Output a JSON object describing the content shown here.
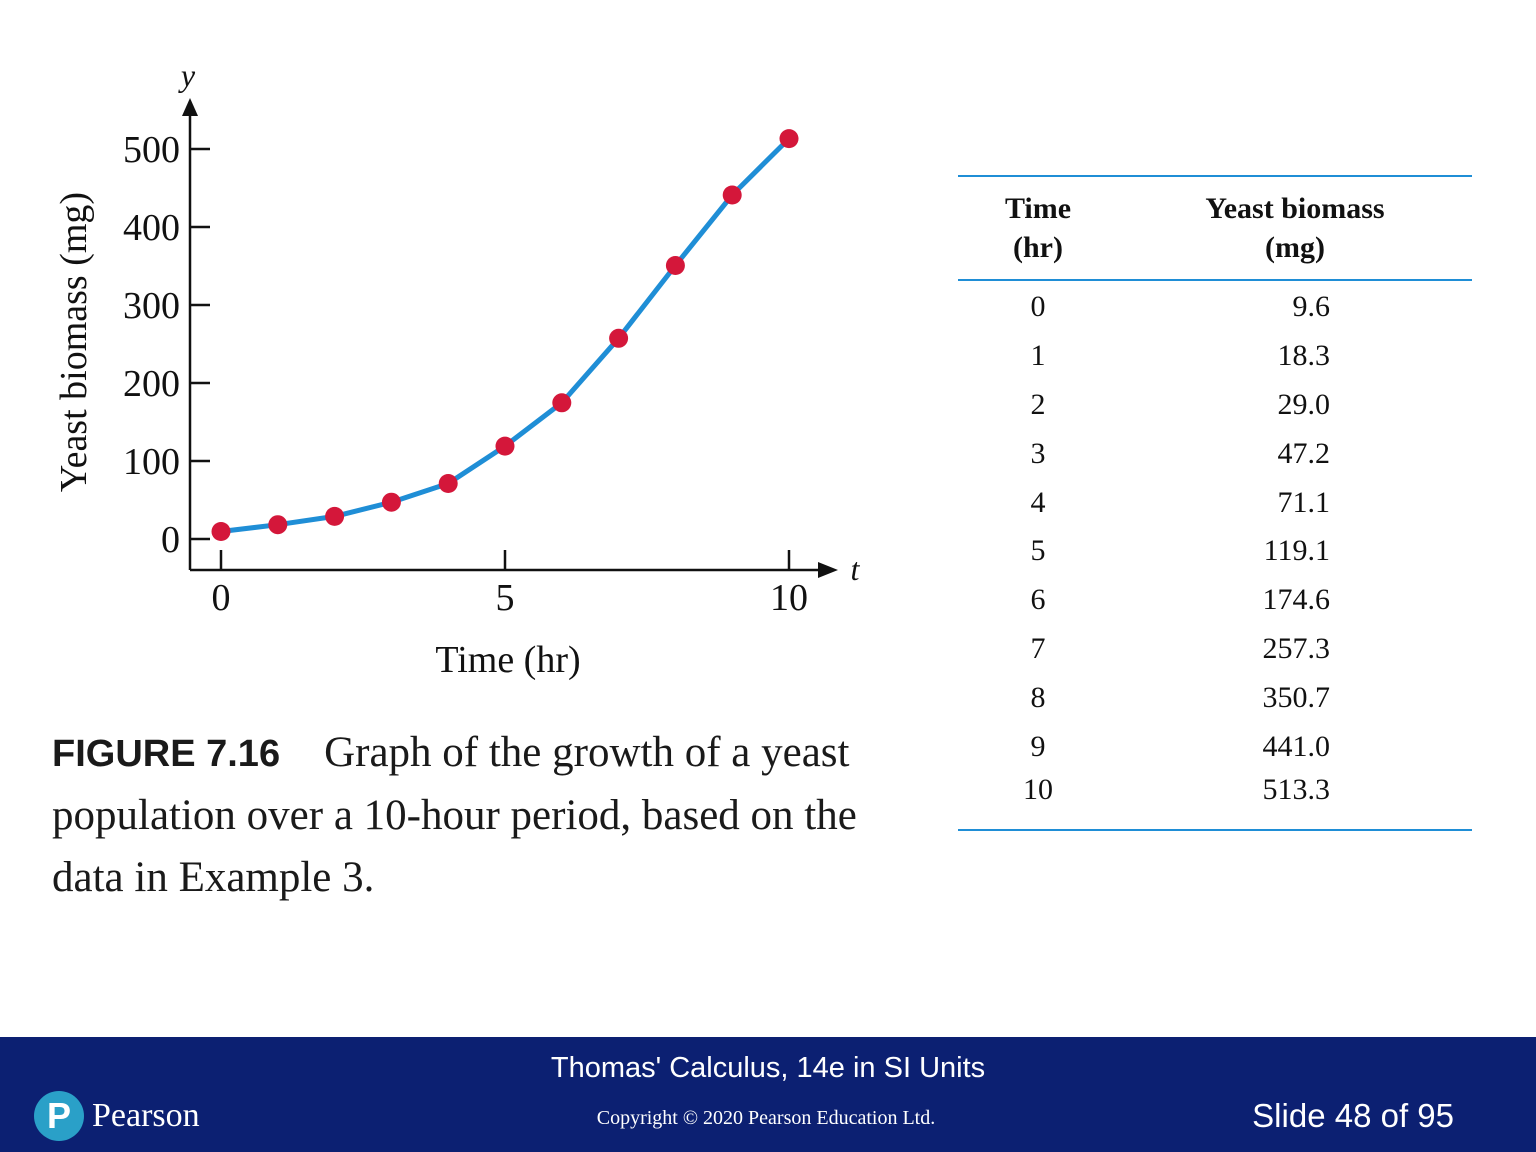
{
  "chart_data": {
    "type": "line",
    "x_axis_symbol": "t",
    "y_axis_symbol": "y",
    "xlabel": "Time (hr)",
    "ylabel": "Yeast biomass (mg)",
    "xlim": [
      0,
      10
    ],
    "ylim": [
      0,
      500
    ],
    "x_ticks": [
      0,
      5,
      10
    ],
    "y_ticks": [
      0,
      100,
      200,
      300,
      400,
      500
    ],
    "x": [
      0,
      1,
      2,
      3,
      4,
      5,
      6,
      7,
      8,
      9,
      10
    ],
    "y": [
      9.6,
      18.3,
      29.0,
      47.2,
      71.1,
      119.1,
      174.6,
      257.3,
      350.7,
      441.0,
      513.3
    ],
    "line_color": "#1f8ed6",
    "marker_color": "#d4173a",
    "grid": false
  },
  "caption": {
    "label": "FIGURE 7.16",
    "text": "Graph of the growth of a yeast population over a 10-hour period, based on the data in Example 3."
  },
  "table": {
    "header_time": [
      "Time",
      "(hr)"
    ],
    "header_mass": [
      "Yeast biomass",
      "(mg)"
    ],
    "rows": [
      {
        "time": "0",
        "mass": "9.6"
      },
      {
        "time": "1",
        "mass": "18.3"
      },
      {
        "time": "2",
        "mass": "29.0"
      },
      {
        "time": "3",
        "mass": "47.2"
      },
      {
        "time": "4",
        "mass": "71.1"
      },
      {
        "time": "5",
        "mass": "119.1"
      },
      {
        "time": "6",
        "mass": "174.6"
      },
      {
        "time": "7",
        "mass": "257.3"
      },
      {
        "time": "8",
        "mass": "350.7"
      },
      {
        "time": "9",
        "mass": "441.0"
      },
      {
        "time": "10",
        "mass": "513.3"
      }
    ],
    "rule_color": "#1f8ed6"
  },
  "footer": {
    "book_title": "Thomas' Calculus, 14e in SI Units",
    "copyright": "Copyright © 2020 Pearson Education Ltd.",
    "slide_indicator": "Slide 48 of 95",
    "brand": "Pearson",
    "brand_mark": "P",
    "background": "#0c2072"
  }
}
